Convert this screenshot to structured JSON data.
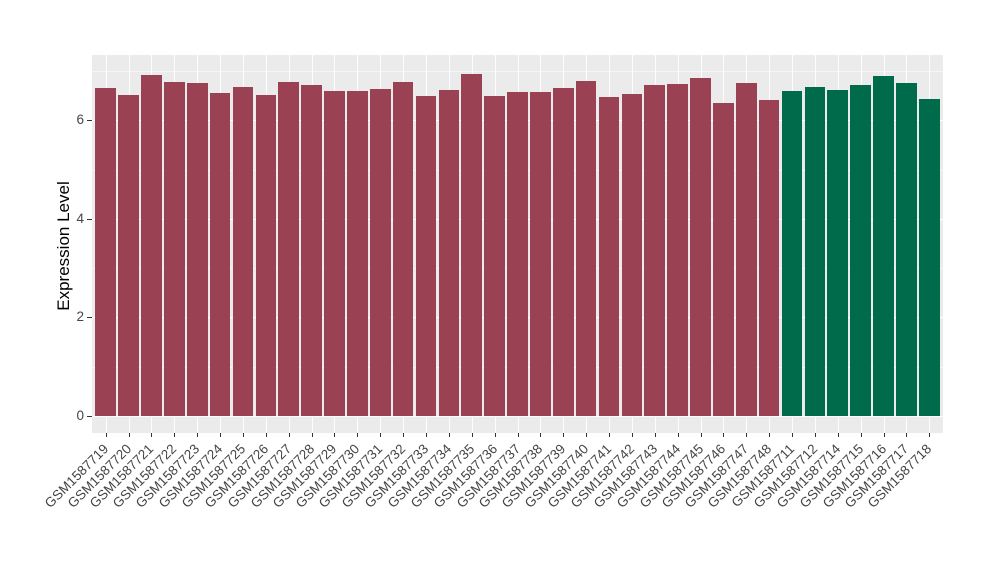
{
  "chart_data": {
    "type": "bar",
    "title": "",
    "xlabel": "",
    "ylabel": "Expression Level",
    "ylim": [
      0,
      7.27
    ],
    "y_ticks": [
      0,
      2,
      4,
      6
    ],
    "y_minor_gridlines": [
      1,
      3,
      5,
      7
    ],
    "grid": "on",
    "legend": "none",
    "categories": [
      "GSM1587719",
      "GSM1587720",
      "GSM1587721",
      "GSM1587722",
      "GSM1587723",
      "GSM1587724",
      "GSM1587725",
      "GSM1587726",
      "GSM1587727",
      "GSM1587728",
      "GSM1587729",
      "GSM1587730",
      "GSM1587731",
      "GSM1587732",
      "GSM1587733",
      "GSM1587734",
      "GSM1587735",
      "GSM1587736",
      "GSM1587737",
      "GSM1587738",
      "GSM1587739",
      "GSM1587740",
      "GSM1587741",
      "GSM1587742",
      "GSM1587743",
      "GSM1587744",
      "GSM1587745",
      "GSM1587746",
      "GSM1587747",
      "GSM1587748",
      "GSM1587711",
      "GSM1587712",
      "GSM1587714",
      "GSM1587715",
      "GSM1587716",
      "GSM1587717",
      "GSM1587718"
    ],
    "values": [
      6.66,
      6.51,
      6.92,
      6.78,
      6.76,
      6.56,
      6.68,
      6.51,
      6.77,
      6.72,
      6.6,
      6.6,
      6.64,
      6.77,
      6.49,
      6.62,
      6.93,
      6.49,
      6.58,
      6.58,
      6.66,
      6.8,
      6.48,
      6.54,
      6.72,
      6.74,
      6.85,
      6.34,
      6.76,
      6.4,
      6.6,
      6.68,
      6.62,
      6.72,
      6.89,
      6.75,
      6.43
    ],
    "bar_group": [
      "maroon",
      "maroon",
      "maroon",
      "maroon",
      "maroon",
      "maroon",
      "maroon",
      "maroon",
      "maroon",
      "maroon",
      "maroon",
      "maroon",
      "maroon",
      "maroon",
      "maroon",
      "maroon",
      "maroon",
      "maroon",
      "maroon",
      "maroon",
      "maroon",
      "maroon",
      "maroon",
      "maroon",
      "maroon",
      "maroon",
      "maroon",
      "maroon",
      "maroon",
      "maroon",
      "green",
      "green",
      "green",
      "green",
      "green",
      "green",
      "green"
    ],
    "group_colors": {
      "maroon": "#9A4254",
      "green": "#006B4A"
    }
  },
  "style": {
    "figure_bg": "#FFFFFF",
    "panel_bg": "#EBEBEB",
    "gridline_color": "#FFFFFF",
    "axis_text_color": "#454545",
    "axis_title_color": "#000000",
    "tick_color": "#333333"
  }
}
